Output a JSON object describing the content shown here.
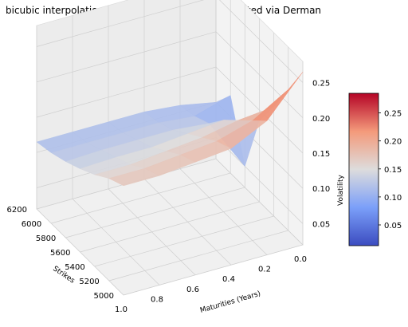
{
  "chart_data": {
    "type": "surface",
    "title": "bicubic interpolation of volatility surface approimated via Derman",
    "xlabel": "Strikes",
    "ylabel": "Maturities (Years)",
    "zlabel": "Volatility",
    "strike_ticks": [
      "5000",
      "5200",
      "5400",
      "5600",
      "5800",
      "6000",
      "6200"
    ],
    "maturity_ticks": [
      "1.0",
      "0.8",
      "0.6",
      "0.4",
      "0.2",
      "0.0"
    ],
    "vol_ticks": [
      "0.05",
      "0.10",
      "0.15",
      "0.20",
      "0.25"
    ],
    "colorbar_ticks": [
      "0.05",
      "0.10",
      "0.15",
      "0.20",
      "0.25"
    ],
    "colormap": "coolwarm",
    "xlim": [
      5000,
      6200
    ],
    "ylim": [
      0.0,
      1.0
    ],
    "zlim": [
      0.02,
      0.28
    ],
    "clim": [
      0.013,
      0.285
    ],
    "grid": true,
    "colorbar_placement": "right",
    "strikes": [
      5000,
      5200,
      5400,
      5600,
      5800,
      6000,
      6200
    ],
    "maturities": [
      0.0,
      0.2,
      0.4,
      0.6,
      0.8,
      1.0
    ],
    "volatility": [
      [
        0.265,
        0.22,
        0.175,
        0.135,
        0.05,
        0.13,
        0.1
      ],
      [
        0.21,
        0.19,
        0.17,
        0.15,
        0.125,
        0.115,
        0.11
      ],
      [
        0.185,
        0.175,
        0.16,
        0.145,
        0.13,
        0.12,
        0.115
      ],
      [
        0.18,
        0.17,
        0.155,
        0.14,
        0.13,
        0.12,
        0.115
      ],
      [
        0.175,
        0.165,
        0.15,
        0.14,
        0.13,
        0.12,
        0.115
      ],
      [
        0.175,
        0.165,
        0.15,
        0.138,
        0.128,
        0.12,
        0.115
      ]
    ]
  }
}
